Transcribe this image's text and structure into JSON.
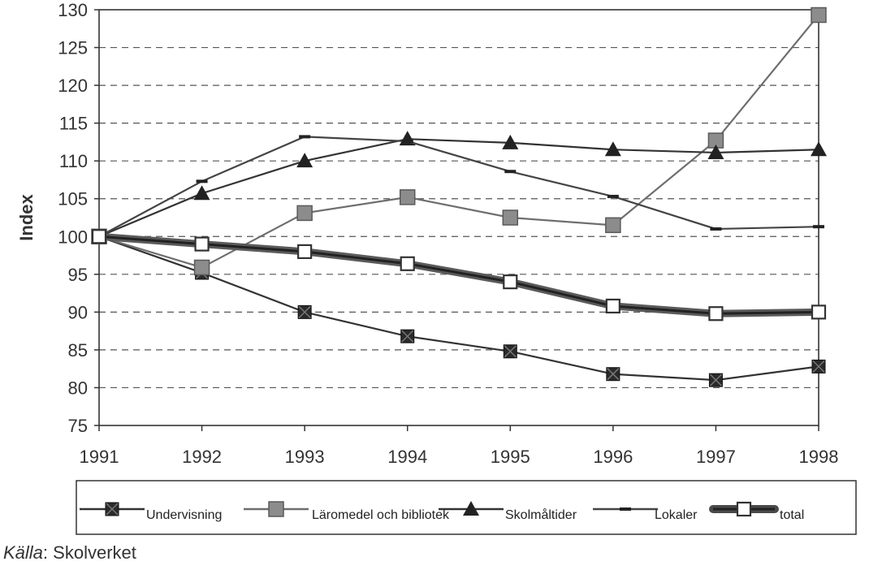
{
  "chart_data": {
    "type": "line",
    "title": "",
    "xlabel": "",
    "ylabel": "Index",
    "ylim": [
      75,
      130
    ],
    "yticks": [
      75,
      80,
      85,
      90,
      95,
      100,
      105,
      110,
      115,
      120,
      125,
      130
    ],
    "x": [
      "1991",
      "1992",
      "1993",
      "1994",
      "1995",
      "1996",
      "1997",
      "1998"
    ],
    "grid": "horizontal dashed",
    "legend_position": "bottom",
    "series": [
      {
        "name": "Undervisning",
        "marker": "square-x",
        "color": "#333333",
        "values": [
          100,
          95.2,
          90,
          86.8,
          84.8,
          81.8,
          81,
          82.8
        ]
      },
      {
        "name": "Läromedel och bibliotek",
        "marker": "square-gray",
        "color": "#6e6e6e",
        "values": [
          100,
          95.9,
          103.1,
          105.2,
          102.5,
          101.5,
          112.7,
          129.3
        ]
      },
      {
        "name": "Skolmåltider",
        "marker": "triangle",
        "color": "#333333",
        "values": [
          100,
          105.7,
          110,
          112.9,
          112.4,
          111.5,
          111.1,
          111.5
        ]
      },
      {
        "name": "Lokaler",
        "marker": "dash",
        "color": "#444444",
        "values": [
          100,
          107.3,
          113.2,
          112.6,
          108.6,
          105.3,
          101,
          101.3
        ]
      },
      {
        "name": "total",
        "marker": "square-open",
        "color": "#3a3a3a",
        "values": [
          100,
          99,
          98,
          96.4,
          94,
          90.8,
          89.8,
          90
        ]
      }
    ]
  },
  "source": {
    "label": "Källa",
    "sep": ":",
    "text": " Skolverket"
  }
}
